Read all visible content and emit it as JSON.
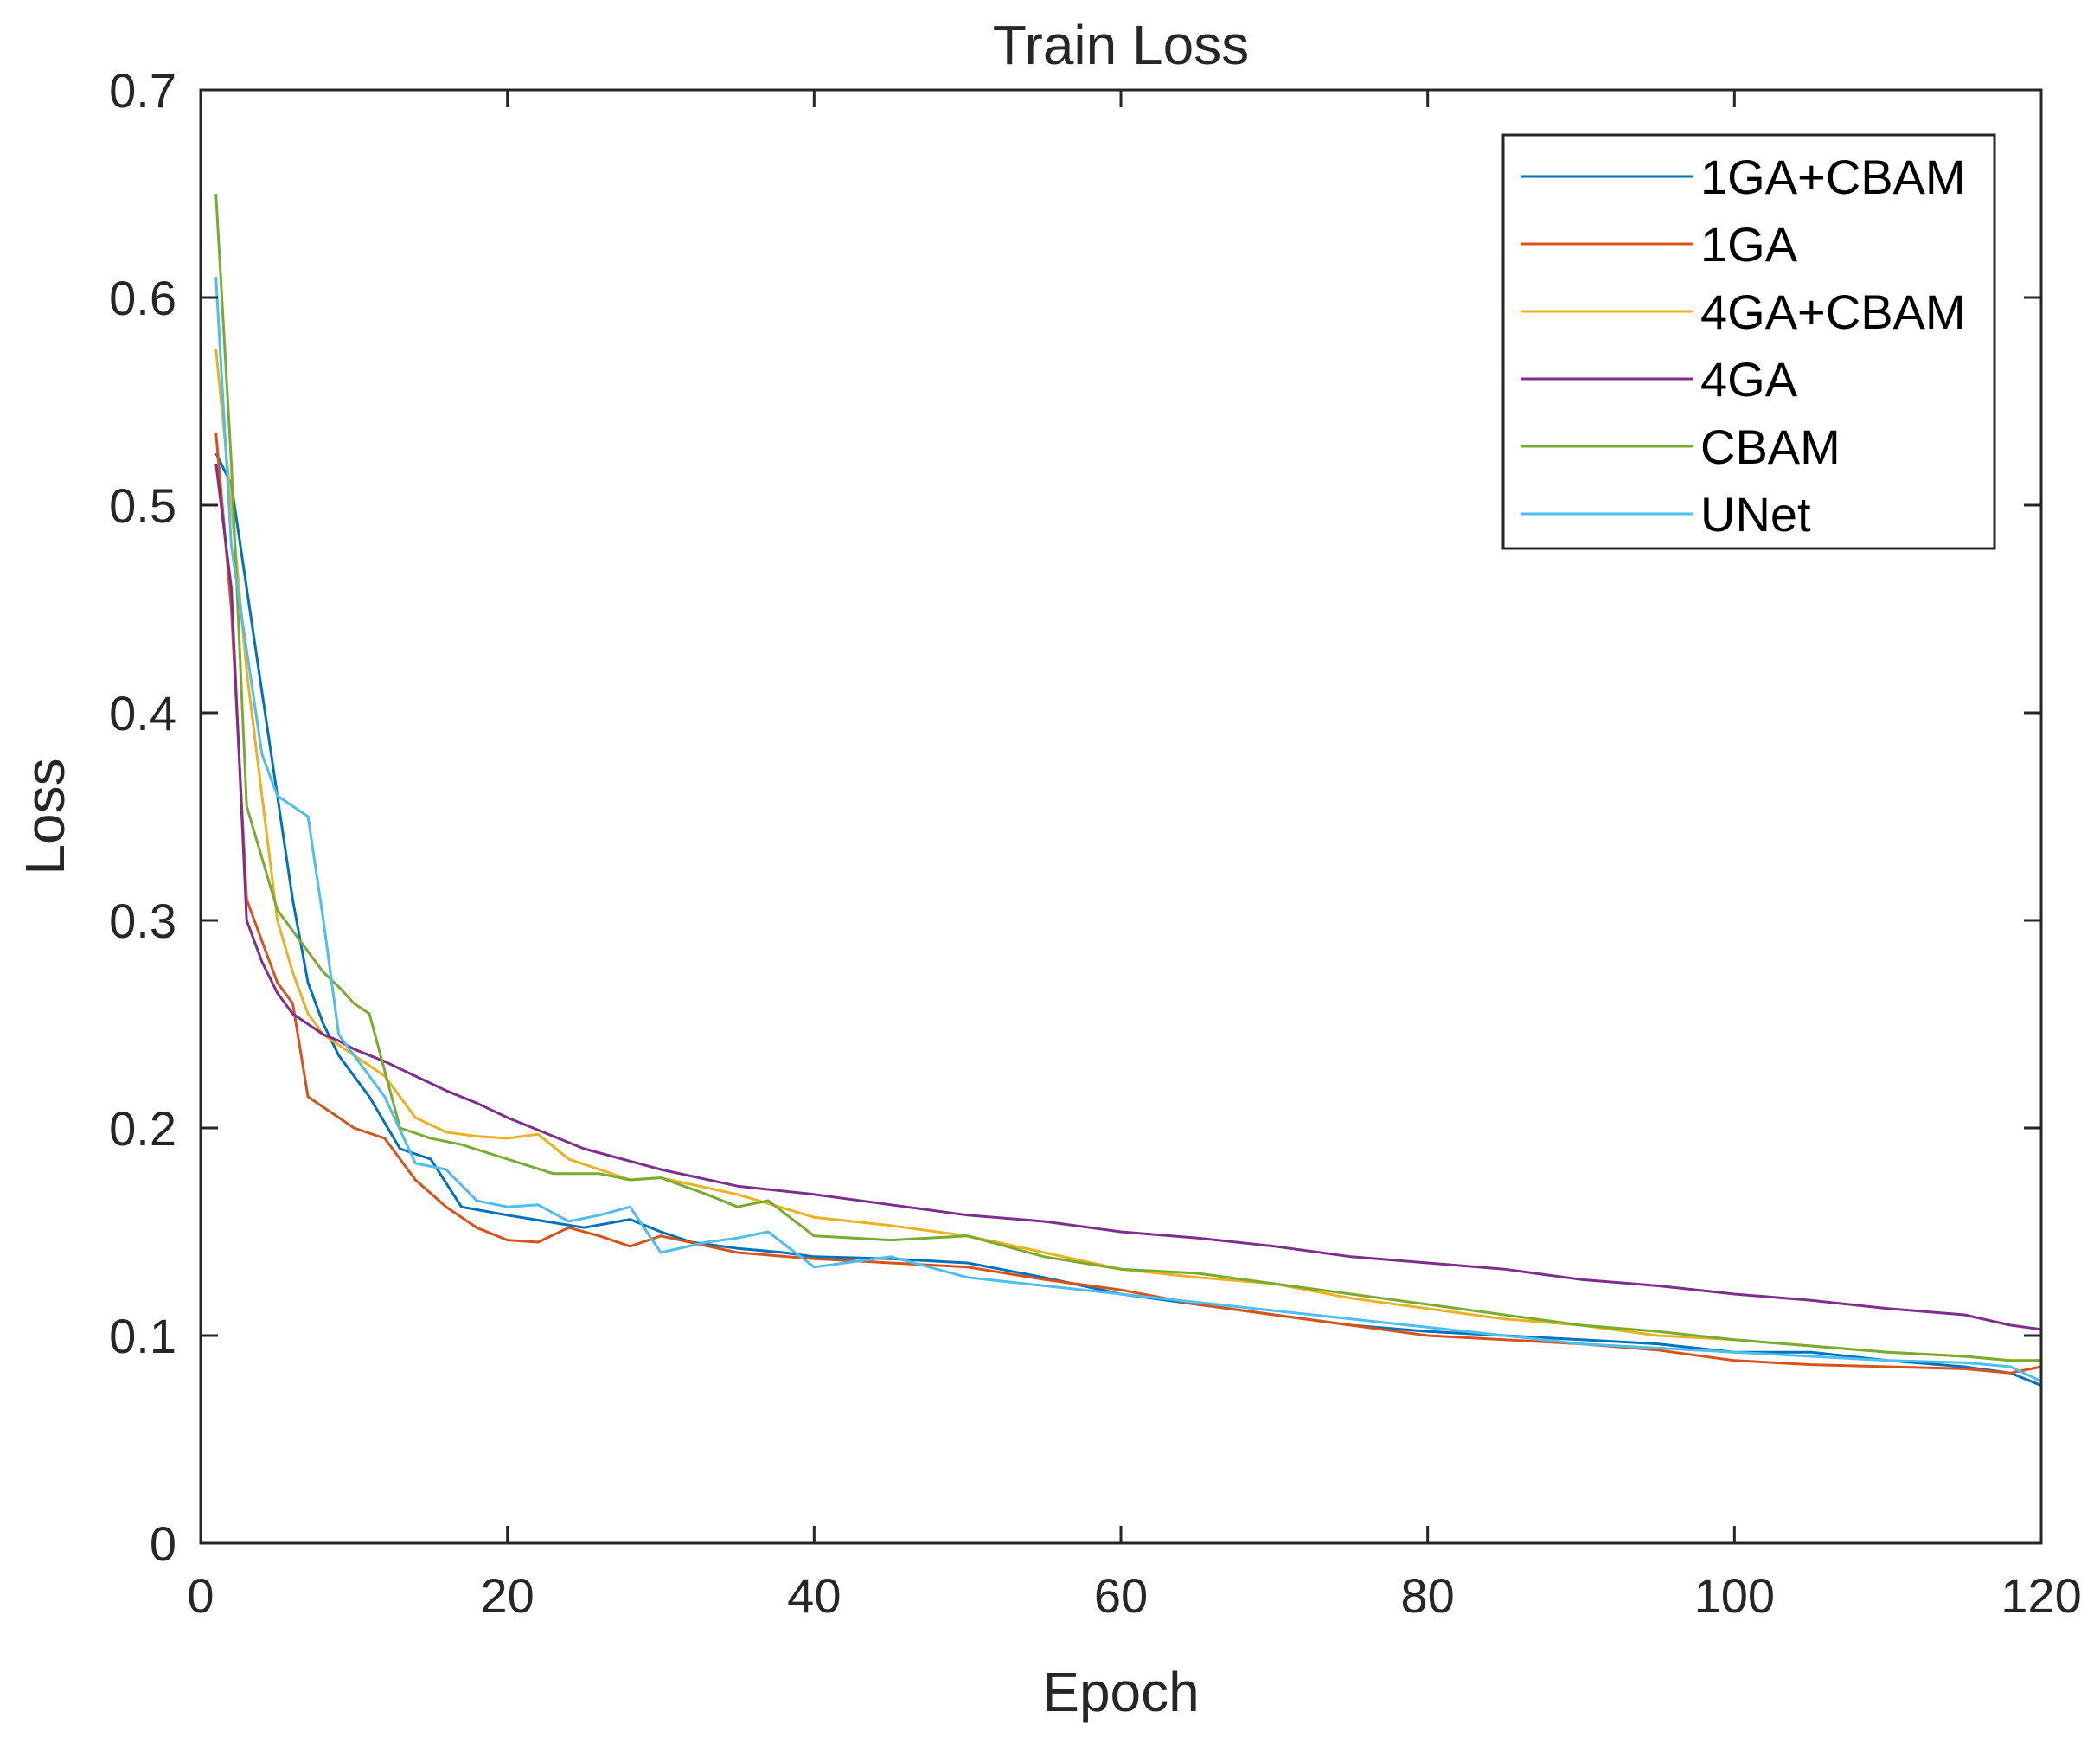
{
  "chart_data": {
    "type": "line",
    "title": "Train Loss",
    "xlabel": "Epoch",
    "ylabel": "Loss",
    "xlim": [
      0,
      120
    ],
    "ylim": [
      0,
      0.7
    ],
    "xticks": [
      0,
      20,
      40,
      60,
      80,
      100,
      120
    ],
    "xtick_labels": [
      "0",
      "20",
      "40",
      "60",
      "80",
      "100",
      "120"
    ],
    "yticks": [
      0,
      0.1,
      0.2,
      0.3,
      0.4,
      0.5,
      0.6,
      0.7
    ],
    "ytick_labels": [
      "0",
      "0.1",
      "0.2",
      "0.3",
      "0.4",
      "0.5",
      "0.6",
      "0.7"
    ],
    "grid": false,
    "legend_position": "top-right",
    "series": [
      {
        "name": "1GA+CBAM",
        "color": "#0072BD",
        "x": [
          1,
          2,
          3,
          4,
          5,
          6,
          7,
          8,
          9,
          10,
          11,
          13,
          15,
          17,
          20,
          25,
          28,
          30,
          32,
          35,
          38,
          40,
          45,
          50,
          55,
          60,
          65,
          70,
          75,
          80,
          85,
          90,
          95,
          100,
          105,
          110,
          115,
          118,
          120
        ],
        "values": [
          0.525,
          0.51,
          0.46,
          0.41,
          0.36,
          0.31,
          0.27,
          0.25,
          0.235,
          0.225,
          0.215,
          0.19,
          0.185,
          0.162,
          0.158,
          0.152,
          0.156,
          0.15,
          0.145,
          0.142,
          0.14,
          0.138,
          0.137,
          0.135,
          0.128,
          0.12,
          0.115,
          0.11,
          0.105,
          0.102,
          0.1,
          0.098,
          0.096,
          0.092,
          0.092,
          0.088,
          0.085,
          0.082,
          0.076
        ]
      },
      {
        "name": "1GA",
        "color": "#D95319",
        "x": [
          1,
          2,
          3,
          4,
          5,
          6,
          7,
          8,
          9,
          10,
          12,
          14,
          16,
          18,
          20,
          22,
          24,
          26,
          28,
          30,
          35,
          40,
          45,
          50,
          55,
          60,
          65,
          70,
          75,
          80,
          85,
          90,
          95,
          100,
          105,
          110,
          115,
          118,
          120
        ],
        "values": [
          0.535,
          0.45,
          0.31,
          0.29,
          0.27,
          0.26,
          0.215,
          0.21,
          0.205,
          0.2,
          0.195,
          0.175,
          0.162,
          0.152,
          0.146,
          0.145,
          0.152,
          0.148,
          0.143,
          0.148,
          0.14,
          0.137,
          0.135,
          0.133,
          0.127,
          0.122,
          0.115,
          0.11,
          0.105,
          0.1,
          0.098,
          0.096,
          0.093,
          0.088,
          0.086,
          0.085,
          0.084,
          0.082,
          0.085
        ]
      },
      {
        "name": "4GA+CBAM",
        "color": "#EDB120",
        "x": [
          1,
          2,
          3,
          4,
          5,
          6,
          7,
          8,
          9,
          10,
          12,
          14,
          16,
          18,
          20,
          22,
          24,
          26,
          28,
          30,
          35,
          40,
          45,
          50,
          55,
          60,
          65,
          70,
          75,
          80,
          85,
          90,
          95,
          100,
          105,
          110,
          115,
          118,
          120
        ],
        "values": [
          0.575,
          0.5,
          0.42,
          0.36,
          0.3,
          0.275,
          0.255,
          0.245,
          0.24,
          0.235,
          0.225,
          0.205,
          0.198,
          0.196,
          0.195,
          0.197,
          0.185,
          0.18,
          0.175,
          0.176,
          0.168,
          0.157,
          0.153,
          0.148,
          0.14,
          0.132,
          0.128,
          0.125,
          0.118,
          0.113,
          0.108,
          0.105,
          0.1,
          0.098,
          0.095,
          0.092,
          0.09,
          0.088,
          0.088
        ]
      },
      {
        "name": "4GA",
        "color": "#7E2F8E",
        "x": [
          1,
          2,
          3,
          4,
          5,
          6,
          7,
          8,
          9,
          10,
          12,
          14,
          16,
          18,
          20,
          25,
          30,
          35,
          40,
          45,
          50,
          55,
          60,
          65,
          70,
          75,
          80,
          85,
          90,
          95,
          100,
          105,
          110,
          115,
          118,
          120
        ],
        "values": [
          0.52,
          0.46,
          0.3,
          0.28,
          0.265,
          0.255,
          0.25,
          0.245,
          0.242,
          0.238,
          0.232,
          0.225,
          0.218,
          0.212,
          0.205,
          0.19,
          0.18,
          0.172,
          0.168,
          0.163,
          0.158,
          0.155,
          0.15,
          0.147,
          0.143,
          0.138,
          0.135,
          0.132,
          0.127,
          0.124,
          0.12,
          0.117,
          0.113,
          0.11,
          0.105,
          0.103
        ]
      },
      {
        "name": "CBAM",
        "color": "#77AC30",
        "x": [
          1,
          2,
          3,
          4,
          5,
          6,
          7,
          8,
          9,
          10,
          11,
          13,
          15,
          17,
          20,
          23,
          26,
          28,
          30,
          33,
          35,
          37,
          40,
          45,
          50,
          55,
          60,
          65,
          70,
          75,
          80,
          85,
          90,
          95,
          100,
          105,
          110,
          115,
          118,
          120
        ],
        "values": [
          0.65,
          0.52,
          0.355,
          0.33,
          0.305,
          0.295,
          0.285,
          0.275,
          0.268,
          0.26,
          0.255,
          0.2,
          0.195,
          0.192,
          0.185,
          0.178,
          0.178,
          0.175,
          0.176,
          0.168,
          0.162,
          0.165,
          0.148,
          0.146,
          0.148,
          0.138,
          0.132,
          0.13,
          0.125,
          0.12,
          0.115,
          0.11,
          0.105,
          0.102,
          0.098,
          0.095,
          0.092,
          0.09,
          0.088,
          0.088
        ]
      },
      {
        "name": "UNet",
        "color": "#4DBEEE",
        "x": [
          1,
          2,
          3,
          4,
          5,
          6,
          7,
          8,
          9,
          10,
          12,
          14,
          16,
          18,
          20,
          22,
          24,
          26,
          28,
          30,
          33,
          35,
          37,
          40,
          45,
          50,
          55,
          60,
          65,
          70,
          75,
          80,
          85,
          90,
          95,
          100,
          105,
          110,
          115,
          118,
          120
        ],
        "values": [
          0.61,
          0.48,
          0.43,
          0.38,
          0.36,
          0.355,
          0.35,
          0.3,
          0.245,
          0.235,
          0.215,
          0.183,
          0.18,
          0.165,
          0.162,
          0.163,
          0.155,
          0.158,
          0.162,
          0.14,
          0.145,
          0.147,
          0.15,
          0.133,
          0.138,
          0.128,
          0.124,
          0.12,
          0.116,
          0.112,
          0.108,
          0.104,
          0.1,
          0.096,
          0.094,
          0.092,
          0.09,
          0.088,
          0.087,
          0.085,
          0.078
        ]
      }
    ]
  }
}
